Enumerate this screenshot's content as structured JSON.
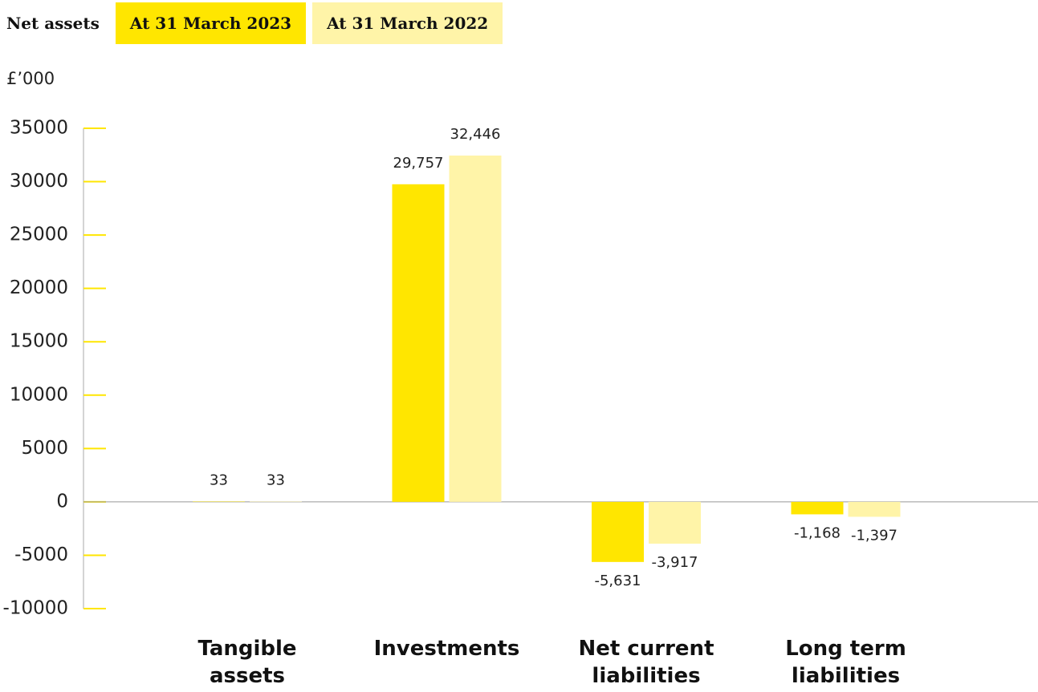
{
  "chart_data": {
    "type": "bar",
    "title": "Net assets",
    "y_axis_label": "£’000",
    "categories": [
      "Tangible assets",
      "Investments",
      "Net current liabilities",
      "Long term liabilities"
    ],
    "series": [
      {
        "name": "At 31 March 2023",
        "color": "#ffe600",
        "values": [
          33,
          29757,
          -5631,
          -1168
        ],
        "value_labels": [
          "33",
          "29,757",
          "-5,631",
          "-1,168"
        ]
      },
      {
        "name": "At 31 March 2022",
        "color": "#fff4a8",
        "values": [
          33,
          32446,
          -3917,
          -1397
        ],
        "value_labels": [
          "33",
          "32,446",
          "-3,917",
          "-1,397"
        ]
      }
    ],
    "ylim": [
      -10000,
      35000
    ],
    "yticks": [
      35000,
      30000,
      25000,
      20000,
      15000,
      10000,
      5000,
      0,
      -5000,
      -10000
    ]
  }
}
